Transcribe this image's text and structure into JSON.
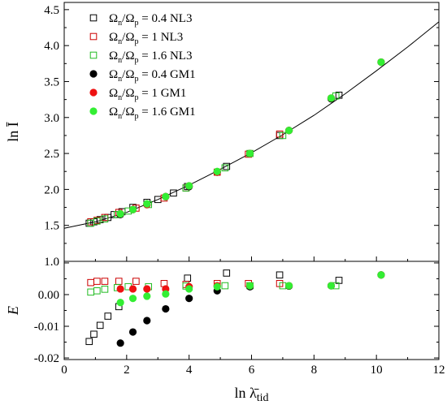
{
  "chart_data": {
    "type": "scatter",
    "xlabel": "ln λ̄",
    "xlabel_sub": "tid",
    "xlim": [
      0,
      12
    ],
    "x_ticks": [
      0,
      2,
      4,
      6,
      8,
      10,
      12
    ],
    "x_tick_labels": [
      "0",
      "2",
      "4",
      "6",
      "8",
      "10",
      "12"
    ],
    "grid": false,
    "top_panel": {
      "ylabel": "ln Ī",
      "ylim": [
        1.0,
        4.6
      ],
      "y_ticks": [
        1.0,
        1.5,
        2.0,
        2.5,
        3.0,
        3.5,
        4.0,
        4.5
      ],
      "y_tick_labels": [
        "1.0",
        "1.5",
        "2.0",
        "2.5",
        "3.0",
        "3.5",
        "4.0",
        "4.5"
      ],
      "legend_position": "top-left",
      "fit_line": {
        "x": [
          0,
          1,
          2,
          3,
          4,
          5,
          6,
          7,
          8,
          9,
          10,
          11,
          12
        ],
        "y": [
          1.46,
          1.55,
          1.68,
          1.86,
          2.06,
          2.28,
          2.51,
          2.76,
          3.03,
          3.33,
          3.65,
          3.98,
          4.33
        ]
      },
      "series": [
        {
          "label_ratio": "0.4",
          "model": "NL3",
          "marker": "open-square",
          "color": "#000000",
          "x": [
            0.8,
            0.95,
            1.15,
            1.4,
            1.6,
            1.85,
            2.2,
            2.65,
            3.0,
            3.5,
            3.95,
            5.2,
            6.9,
            8.8
          ],
          "y": [
            1.53,
            1.55,
            1.58,
            1.61,
            1.65,
            1.69,
            1.75,
            1.82,
            1.86,
            1.95,
            2.04,
            2.32,
            2.75,
            3.31
          ]
        },
        {
          "label_ratio": "1",
          "model": "NL3",
          "marker": "open-square",
          "color": "#cc0000",
          "x": [
            0.85,
            1.05,
            1.3,
            1.75,
            2.3,
            3.2,
            3.9,
            4.9,
            5.9,
            6.9
          ],
          "y": [
            1.55,
            1.57,
            1.61,
            1.68,
            1.74,
            1.88,
            2.02,
            2.24,
            2.49,
            2.77
          ]
        },
        {
          "label_ratio": "1.6",
          "model": "NL3",
          "marker": "open-square",
          "color": "#22bb22",
          "x": [
            0.85,
            1.05,
            1.3,
            1.7,
            2.05,
            2.7,
            3.9,
            5.15,
            5.95,
            7.0,
            8.7
          ],
          "y": [
            1.53,
            1.56,
            1.59,
            1.65,
            1.7,
            1.79,
            2.02,
            2.3,
            2.5,
            2.75,
            3.3
          ]
        },
        {
          "label_ratio": "0.4",
          "model": "GM1",
          "marker": "filled-circle",
          "color": "#000000",
          "x": [
            1.8,
            2.2,
            2.65,
            3.25,
            4.0,
            4.9,
            5.95,
            7.2,
            8.55,
            10.15
          ],
          "y": [
            1.65,
            1.72,
            1.79,
            1.9,
            2.04,
            2.24,
            2.5,
            2.82,
            3.26,
            3.77
          ]
        },
        {
          "label_ratio": "1",
          "model": "GM1",
          "marker": "filled-circle",
          "color": "#ee1111",
          "x": [
            1.8,
            2.2,
            2.65,
            3.25,
            4.0,
            4.9,
            5.95,
            7.2,
            8.55,
            10.15
          ],
          "y": [
            1.66,
            1.72,
            1.79,
            1.9,
            2.05,
            2.24,
            2.5,
            2.82,
            3.27,
            3.77
          ]
        },
        {
          "label_ratio": "1.6",
          "model": "GM1",
          "marker": "filled-circle",
          "color": "#33ee33",
          "x": [
            1.8,
            2.2,
            2.65,
            3.25,
            4.0,
            4.9,
            5.95,
            7.2,
            8.55,
            10.15
          ],
          "y": [
            1.66,
            1.72,
            1.8,
            1.9,
            2.05,
            2.25,
            2.5,
            2.82,
            3.27,
            3.77
          ]
        }
      ]
    },
    "bottom_panel": {
      "ylabel": "E",
      "ylim": [
        -0.0205,
        0.0105
      ],
      "y_ticks": [
        -0.02,
        -0.01,
        0.0
      ],
      "y_tick_labels": [
        "-0.02",
        "-0.01",
        "0.00"
      ],
      "series": [
        {
          "marker": "open-square",
          "color": "#000000",
          "x": [
            0.8,
            0.95,
            1.15,
            1.4,
            1.75,
            3.95,
            5.2,
            6.9,
            8.8
          ],
          "y": [
            -0.0148,
            -0.0125,
            -0.0097,
            -0.0068,
            -0.0038,
            0.0052,
            0.0068,
            0.0062,
            0.0045
          ]
        },
        {
          "marker": "open-square",
          "color": "#cc0000",
          "x": [
            0.85,
            1.05,
            1.3,
            1.75,
            2.3,
            3.2,
            3.9,
            4.9,
            5.9,
            6.9
          ],
          "y": [
            0.0038,
            0.0042,
            0.0042,
            0.0042,
            0.0042,
            0.0035,
            0.0032,
            0.0035,
            0.0035,
            0.0035
          ]
        },
        {
          "marker": "open-square",
          "color": "#22bb22",
          "x": [
            0.85,
            1.05,
            1.3,
            1.7,
            2.05,
            2.7,
            3.9,
            5.15,
            5.95,
            7.0,
            8.7
          ],
          "y": [
            0.0008,
            0.0012,
            0.0017,
            0.0022,
            0.0025,
            0.0025,
            0.0027,
            0.0028,
            0.0028,
            0.0028,
            0.0028
          ]
        },
        {
          "marker": "filled-circle",
          "color": "#000000",
          "x": [
            1.8,
            2.2,
            2.65,
            3.25,
            4.0,
            4.9,
            5.95,
            7.2,
            8.55,
            10.15
          ],
          "y": [
            -0.0153,
            -0.0118,
            -0.0082,
            -0.0045,
            -0.0012,
            0.0012,
            0.0025,
            0.0027,
            0.0028,
            0.0062
          ]
        },
        {
          "marker": "filled-circle",
          "color": "#ee1111",
          "x": [
            1.8,
            2.2,
            2.65,
            3.25,
            4.0,
            4.9,
            5.95,
            7.2,
            8.55,
            10.15
          ],
          "y": [
            0.0018,
            0.0018,
            0.0018,
            0.0018,
            0.0025,
            0.0028,
            0.0028,
            0.0028,
            0.0028,
            0.0062
          ]
        },
        {
          "marker": "filled-circle",
          "color": "#33ee33",
          "x": [
            1.8,
            2.2,
            2.65,
            3.25,
            4.0,
            4.9,
            5.95,
            7.2,
            8.55,
            10.15
          ],
          "y": [
            -0.0025,
            -0.0012,
            -0.0005,
            0.0002,
            0.0018,
            0.0025,
            0.0028,
            0.0028,
            0.0028,
            0.0062
          ]
        }
      ]
    }
  }
}
